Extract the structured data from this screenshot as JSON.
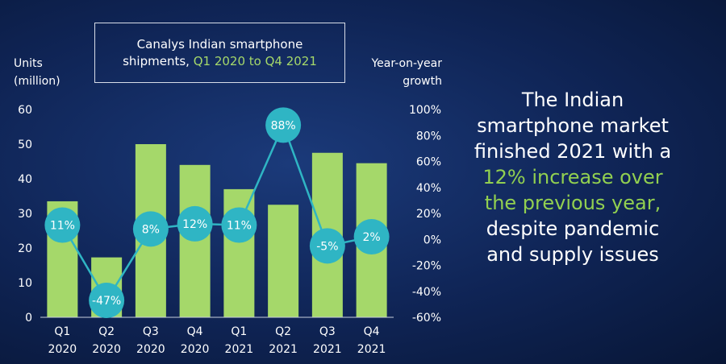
{
  "chart_data": {
    "type": "bar",
    "title_line1": "Canalys Indian smartphone",
    "title_line2_prefix": "shipments,",
    "title_line2_highlight": "Q1 2020 to Q4 2021",
    "left_axis_title_line1": "Units",
    "left_axis_title_line2": "(million)",
    "right_axis_title_line1": "Year-on-year",
    "right_axis_title_line2": "growth",
    "categories": [
      [
        "Q1",
        "2020"
      ],
      [
        "Q2",
        "2020"
      ],
      [
        "Q3",
        "2020"
      ],
      [
        "Q4",
        "2020"
      ],
      [
        "Q1",
        "2021"
      ],
      [
        "Q2",
        "2021"
      ],
      [
        "Q3",
        "2021"
      ],
      [
        "Q4",
        "2021"
      ]
    ],
    "units_million": [
      33.5,
      17.3,
      50.0,
      44.0,
      37.0,
      32.5,
      47.5,
      44.5
    ],
    "yoy_growth_percent": [
      11,
      -47,
      8,
      12,
      11,
      88,
      -5,
      2
    ],
    "yoy_labels": [
      "11%",
      "-47%",
      "8%",
      "12%",
      "11%",
      "88%",
      "-5%",
      "2%"
    ],
    "left_ylim": [
      0,
      60
    ],
    "left_ticks": [
      "0",
      "10",
      "20",
      "30",
      "40",
      "50",
      "60"
    ],
    "right_ylim": [
      -60,
      100
    ],
    "right_ticks": [
      "-60%",
      "-40%",
      "-20%",
      "0%",
      "20%",
      "40%",
      "60%",
      "80%",
      "100%"
    ],
    "grid": false,
    "colors": {
      "bars": "#a5d86a",
      "line": "#2fb5c4",
      "markers": "#2fb5c4",
      "highlight_text": "#92d050"
    }
  },
  "callout": {
    "line1": "The Indian",
    "line2": "smartphone market",
    "line3": "finished 2021 with a",
    "line4": "12% increase over",
    "line5": "the previous year,",
    "line6": "despite pandemic",
    "line7": "and supply issues"
  }
}
